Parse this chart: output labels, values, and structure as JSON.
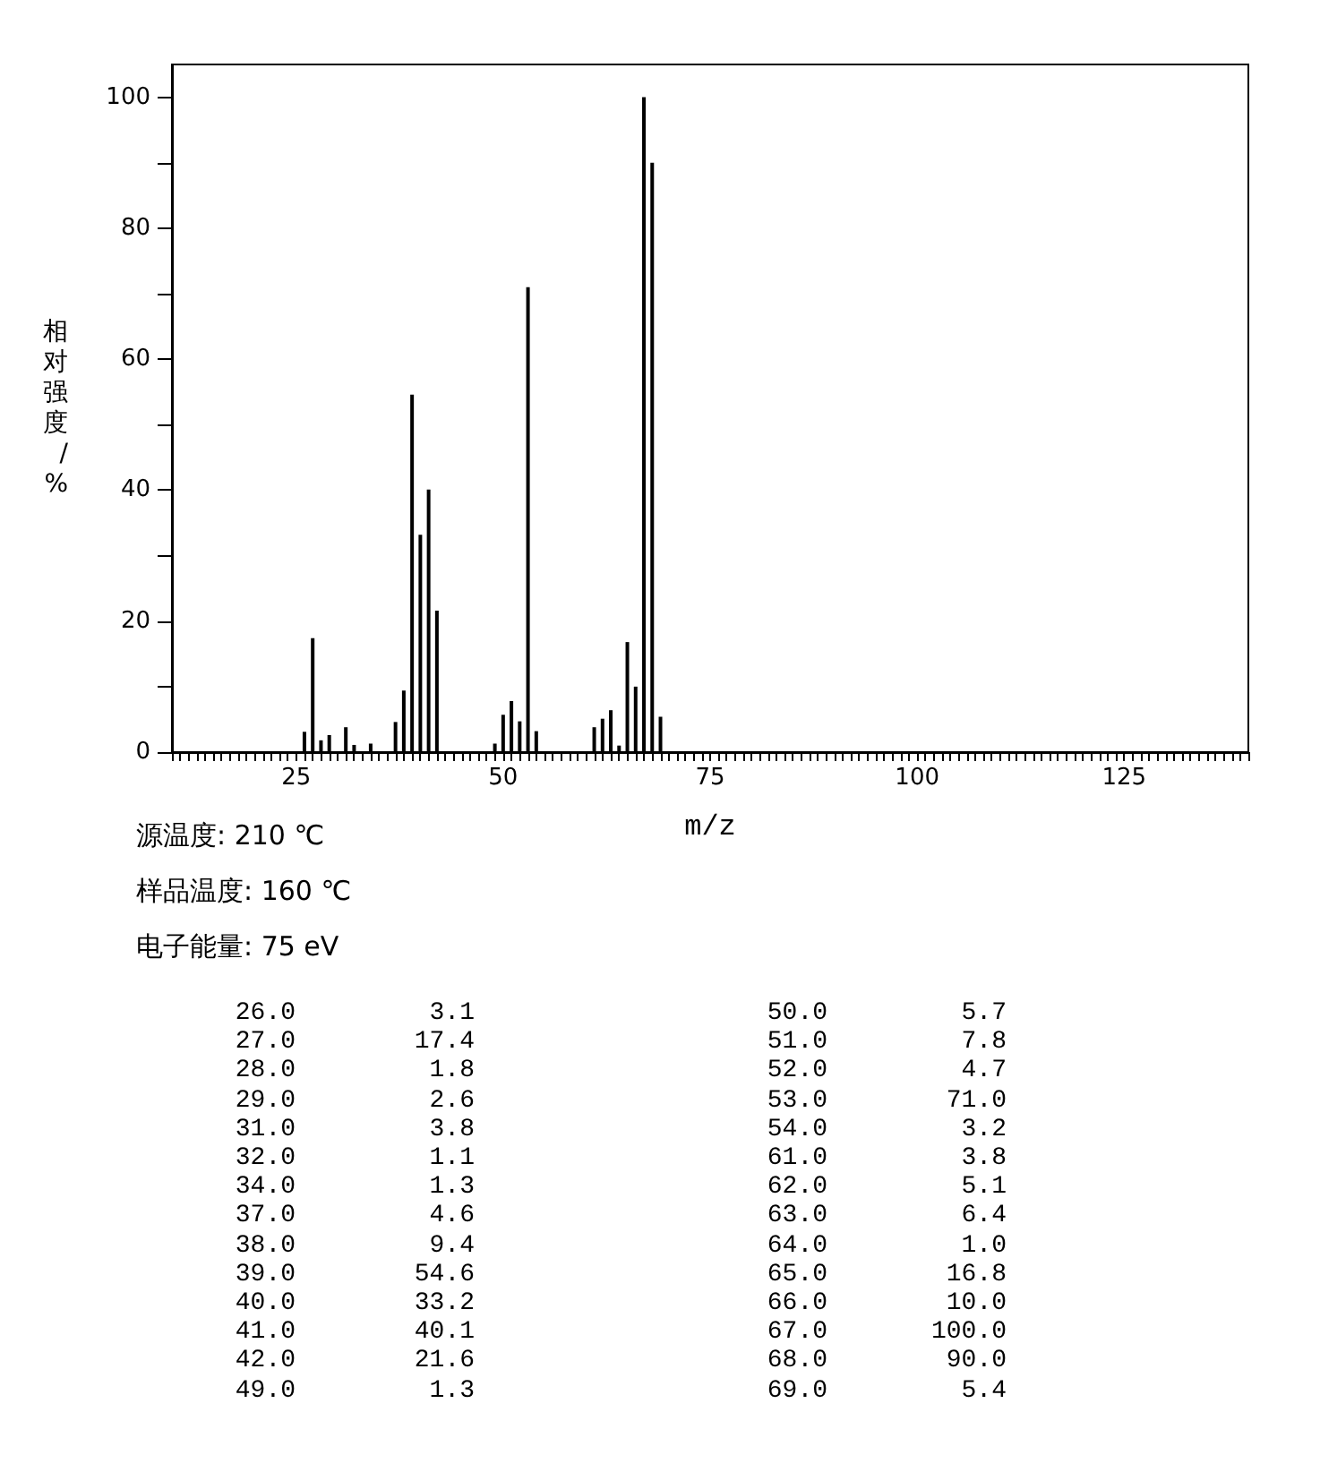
{
  "chart_data": [
    {
      "type": "bar",
      "xlabel": "m/z",
      "ylabel": "相对强度/%",
      "annotations": [
        "源温度: 210 ℃",
        "样品温度: 160 ℃",
        "电子能量: 75 eV"
      ],
      "x": [
        26,
        27,
        28,
        29,
        31,
        32,
        34,
        37,
        38,
        39,
        40,
        41,
        42,
        49,
        50,
        51,
        52,
        53,
        54,
        61,
        62,
        63,
        64,
        65,
        66,
        67,
        68,
        69
      ],
      "values": [
        3.1,
        17.4,
        1.8,
        2.6,
        3.8,
        1.1,
        1.3,
        4.6,
        9.4,
        54.6,
        33.2,
        40.1,
        21.6,
        1.3,
        5.7,
        7.8,
        4.7,
        71.0,
        3.2,
        3.8,
        5.1,
        6.4,
        1.0,
        16.8,
        10.0,
        100.0,
        90.0,
        5.4
      ],
      "color": "#000000",
      "xlim": [
        10,
        140
      ],
      "xticks": [
        25,
        50,
        75,
        100,
        125
      ],
      "ylim": [
        0,
        105
      ],
      "yticks": [
        0,
        {
          "value": 10,
          "label": null
        },
        20,
        {
          "value": 30,
          "label": null
        },
        40,
        {
          "value": 50,
          "label": null
        },
        60,
        {
          "value": 70,
          "label": null
        },
        80,
        {
          "value": 90,
          "label": null
        },
        100
      ]
    },
    {
      "type": "other",
      "annotations": [
        "26.0",
        "3.1",
        "50.0",
        "5.7",
        "27.0",
        "17.4",
        "51.0",
        "7.8",
        "28.0",
        "1.8",
        "52.0",
        "4.7",
        "29.0",
        "2.6",
        "53.0",
        "71.0",
        "31.0",
        "3.8",
        "54.0",
        "3.2",
        "32.0",
        "1.1",
        "61.0",
        "3.8",
        "34.0",
        "1.3",
        "62.0",
        "5.1",
        "37.0",
        "4.6",
        "63.0",
        "6.4",
        "38.0",
        "9.4",
        "64.0",
        "1.0",
        "39.0",
        "54.6",
        "65.0",
        "16.8",
        "40.0",
        "33.2",
        "66.0",
        "10.0",
        "41.0",
        "40.1",
        "67.0",
        "100.0",
        "42.0",
        "21.6",
        "68.0",
        "90.0",
        "49.0",
        "1.3",
        "69.0",
        "5.4"
      ]
    }
  ]
}
